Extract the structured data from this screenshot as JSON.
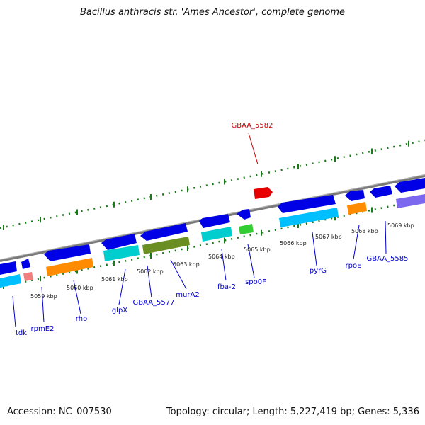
{
  "title": "Bacillus anthracis str. 'Ames Ancestor', complete genome",
  "footer": {
    "accession": "Accession: NC_007530",
    "topology": "Topology: circular; Length: 5,227,419 bp; Genes: 5,336"
  },
  "colors": {
    "gene_label": "#0000cc",
    "highlight_label": "#cc0000",
    "tick": "#1a7a1a",
    "backbone": "#8a8a8a"
  },
  "kbp_labels": [
    "5059 kbp",
    "5060 kbp",
    "5061 kbp",
    "5062 kbp",
    "5063 kbp",
    "5064 kbp",
    "5065 kbp",
    "5066 kbp",
    "5067 kbp",
    "5068 kbp",
    "5069 kbp"
  ],
  "gene_labels": [
    {
      "name": "tdk",
      "color": "#0000cc"
    },
    {
      "name": "rpmE2",
      "color": "#0000cc"
    },
    {
      "name": "rho",
      "color": "#0000cc"
    },
    {
      "name": "glpX",
      "color": "#0000cc"
    },
    {
      "name": "GBAA_5577",
      "color": "#0000cc"
    },
    {
      "name": "murA2",
      "color": "#0000cc"
    },
    {
      "name": "fba-2",
      "color": "#0000cc"
    },
    {
      "name": "spo0F",
      "color": "#0000cc"
    },
    {
      "name": "pyrG",
      "color": "#0000cc"
    },
    {
      "name": "rpoE",
      "color": "#0000cc"
    },
    {
      "name": "GBAA_5585",
      "color": "#0000cc"
    },
    {
      "name": "GBAA_5582",
      "color": "#cc0000"
    }
  ]
}
